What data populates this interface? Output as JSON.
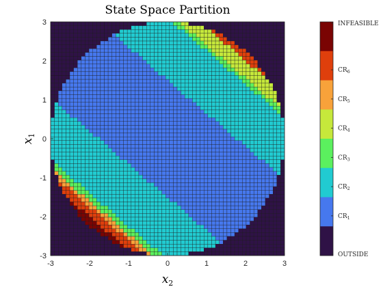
{
  "chart_data": {
    "type": "heatmap",
    "title": "State Space Partition",
    "xlabel": "x",
    "xlabel_sub": "2",
    "ylabel": "x",
    "ylabel_sub": "1",
    "xlim": [
      -3,
      3
    ],
    "ylim": [
      -3,
      3
    ],
    "xticks": [
      "-3",
      "-2",
      "-1",
      "0",
      "1",
      "2",
      "3"
    ],
    "yticks": [
      "3",
      "2",
      "1",
      "0",
      "-1",
      "-2",
      "-3"
    ],
    "grid_cells": 61,
    "region_shape": "disk of radius 3 centred at the origin",
    "classes": [
      {
        "id": 0,
        "label": "OUTSIDE",
        "color": "#2f1246"
      },
      {
        "id": 1,
        "label": "CR",
        "sub": "1",
        "color": "#4678ee"
      },
      {
        "id": 2,
        "label": "CR",
        "sub": "2",
        "color": "#21cbd1"
      },
      {
        "id": 3,
        "label": "CR",
        "sub": "3",
        "color": "#5bf05e"
      },
      {
        "id": 4,
        "label": "CR",
        "sub": "4",
        "color": "#c6e83b"
      },
      {
        "id": 5,
        "label": "CR",
        "sub": "5",
        "color": "#f8a23a"
      },
      {
        "id": 6,
        "label": "CR",
        "sub": "6",
        "color": "#df3f0c"
      },
      {
        "id": 7,
        "label": "INFEASIBLE",
        "color": "#7a0403"
      }
    ],
    "colorbar_order_top_to_bottom": [
      7,
      6,
      5,
      4,
      3,
      2,
      1,
      0
    ],
    "note": "Regions are bands parallel to x1 + 0.85*x2 = c; values below are band boundaries in c",
    "bands": [
      {
        "from": -99,
        "to": -3.7,
        "class": 7
      },
      {
        "from": -3.7,
        "to": -3.45,
        "class": 6
      },
      {
        "from": -3.45,
        "to": -3.3,
        "class": 5
      },
      {
        "from": -3.3,
        "to": -3.1,
        "class": 3
      },
      {
        "from": -3.1,
        "to": -1.5,
        "class": 2
      },
      {
        "from": -1.5,
        "to": 1.5,
        "class": 1
      },
      {
        "from": 1.5,
        "to": 3.1,
        "class": 2
      },
      {
        "from": 3.1,
        "to": 3.25,
        "class": 3
      },
      {
        "from": 3.25,
        "to": 3.7,
        "class": 4
      },
      {
        "from": 3.7,
        "to": 4.0,
        "class": 6
      },
      {
        "from": 4.0,
        "to": 99,
        "class": 7
      }
    ]
  }
}
